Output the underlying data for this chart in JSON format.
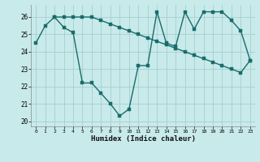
{
  "xlabel": "Humidex (Indice chaleur)",
  "xlim": [
    -0.5,
    23.5
  ],
  "ylim": [
    19.7,
    26.7
  ],
  "yticks": [
    20,
    21,
    22,
    23,
    24,
    25,
    26
  ],
  "xticks": [
    0,
    1,
    2,
    3,
    4,
    5,
    6,
    7,
    8,
    9,
    10,
    11,
    12,
    13,
    14,
    15,
    16,
    17,
    18,
    19,
    20,
    21,
    22,
    23
  ],
  "bg_color": "#c8eaea",
  "grid_color": "#a0c8c8",
  "line_color": "#1a6b6b",
  "series1_x": [
    0,
    1,
    2,
    3,
    4,
    5,
    6,
    7,
    8,
    9,
    10,
    11,
    12,
    13,
    14,
    15,
    16,
    17,
    18,
    19,
    20,
    21,
    22,
    23
  ],
  "series1_y": [
    24.5,
    25.5,
    26.0,
    25.4,
    25.1,
    22.2,
    22.2,
    21.6,
    21.0,
    20.3,
    20.7,
    23.2,
    23.2,
    26.3,
    24.5,
    24.3,
    26.3,
    25.3,
    26.3,
    26.3,
    26.3,
    25.8,
    25.2,
    23.5
  ],
  "series2_x": [
    2,
    3,
    4,
    5,
    6,
    7,
    8,
    9,
    10,
    11,
    12,
    13,
    14,
    15,
    16,
    17,
    18,
    19,
    20,
    21,
    22,
    23
  ],
  "series2_y": [
    26.0,
    26.0,
    26.0,
    26.0,
    26.0,
    25.8,
    25.6,
    25.4,
    25.2,
    25.0,
    24.8,
    24.6,
    24.4,
    24.2,
    24.0,
    23.8,
    23.6,
    23.4,
    23.2,
    23.0,
    22.8,
    23.5
  ],
  "marker_size": 2.5,
  "line_width": 1.0
}
